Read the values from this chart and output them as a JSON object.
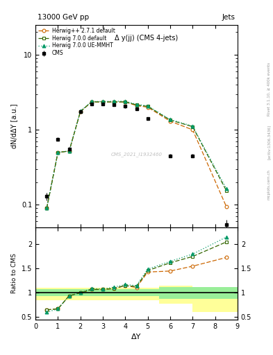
{
  "title_left": "13000 GeV pp",
  "title_right": "Jets",
  "plot_title": "Δ y(jj) (CMS 4-jets)",
  "rivet_label": "Rivet 3.1.10, ≥ 400k events",
  "arxiv_label": "[arXiv:1306.3436]",
  "mcplots_label": "mcplots.cern.ch",
  "watermark": "CMS_2021_I1932460",
  "cms_x": [
    0.5,
    1.0,
    1.5,
    2.0,
    2.5,
    3.0,
    3.5,
    4.0,
    4.5,
    5.0,
    6.0,
    7.0,
    8.5
  ],
  "cms_y": [
    0.13,
    0.75,
    0.55,
    1.75,
    2.2,
    2.2,
    2.15,
    2.05,
    1.9,
    1.4,
    0.45,
    0.45,
    0.055
  ],
  "cms_yerr": [
    0.015,
    0.04,
    0.035,
    0.07,
    0.09,
    0.09,
    0.09,
    0.09,
    0.09,
    0.06,
    0.025,
    0.025,
    0.008
  ],
  "hpp_x": [
    0.5,
    1.0,
    1.5,
    2.0,
    2.5,
    3.0,
    3.5,
    4.0,
    4.5,
    5.0,
    6.0,
    7.0,
    8.5
  ],
  "hpp_y": [
    0.09,
    0.5,
    0.52,
    1.75,
    2.35,
    2.35,
    2.35,
    2.35,
    2.1,
    2.0,
    1.3,
    1.0,
    0.095
  ],
  "h700_x": [
    0.5,
    1.0,
    1.5,
    2.0,
    2.5,
    3.0,
    3.5,
    4.0,
    4.5,
    5.0,
    6.0,
    7.0,
    8.5
  ],
  "h700_y": [
    0.09,
    0.5,
    0.52,
    1.75,
    2.35,
    2.35,
    2.35,
    2.35,
    2.15,
    2.05,
    1.35,
    1.1,
    0.155
  ],
  "hue_x": [
    0.5,
    1.0,
    1.5,
    2.0,
    2.5,
    3.0,
    3.5,
    4.0,
    4.5,
    5.0,
    6.0,
    7.0,
    8.5
  ],
  "hue_y": [
    0.09,
    0.5,
    0.52,
    1.77,
    2.38,
    2.38,
    2.4,
    2.4,
    2.18,
    2.08,
    1.37,
    1.12,
    0.165
  ],
  "ratio_hpp_x": [
    0.5,
    1.0,
    1.5,
    2.0,
    2.5,
    3.0,
    3.5,
    4.0,
    4.5,
    5.0,
    6.0,
    7.0,
    8.5
  ],
  "ratio_hpp_y": [
    0.65,
    0.67,
    0.94,
    1.0,
    1.07,
    1.07,
    1.09,
    1.15,
    1.11,
    1.43,
    1.45,
    1.55,
    1.73
  ],
  "ratio_h700_x": [
    0.5,
    1.0,
    1.5,
    2.0,
    2.5,
    3.0,
    3.5,
    4.0,
    4.5,
    5.0,
    6.0,
    7.0,
    8.5
  ],
  "ratio_h700_y": [
    0.65,
    0.67,
    0.94,
    1.0,
    1.07,
    1.07,
    1.09,
    1.15,
    1.13,
    1.46,
    1.62,
    1.75,
    2.05
  ],
  "ratio_hue_x": [
    0.5,
    1.0,
    1.5,
    2.0,
    2.5,
    3.0,
    3.5,
    4.0,
    4.5,
    5.0,
    6.0,
    7.0,
    8.5
  ],
  "ratio_hue_y": [
    0.6,
    0.67,
    0.94,
    1.0,
    1.09,
    1.08,
    1.12,
    1.17,
    1.15,
    1.49,
    1.65,
    1.8,
    2.15
  ],
  "hpp_color": "#cc6600",
  "h700_color": "#336600",
  "hue_color": "#009966",
  "cms_color": "black",
  "ylabel_main": "dN/dΔY [a.u.]",
  "ylabel_ratio": "Ratio to CMS",
  "xlabel": "ΔY",
  "ylim_main": [
    0.05,
    25
  ],
  "ylim_ratio": [
    0.45,
    2.35
  ],
  "xlim": [
    0.0,
    9.0
  ],
  "band_edges": [
    0.0,
    1.5,
    5.5,
    7.0,
    9.0
  ],
  "green_inner": [
    [
      0.93,
      1.07
    ],
    [
      0.93,
      1.07
    ],
    [
      0.88,
      1.12
    ],
    [
      0.88,
      1.12
    ],
    [
      0.88,
      1.12
    ]
  ],
  "yellow_outer": [
    [
      0.85,
      1.1
    ],
    [
      0.85,
      1.1
    ],
    [
      0.78,
      1.15
    ],
    [
      0.6,
      1.12
    ],
    [
      0.6,
      1.12
    ]
  ]
}
